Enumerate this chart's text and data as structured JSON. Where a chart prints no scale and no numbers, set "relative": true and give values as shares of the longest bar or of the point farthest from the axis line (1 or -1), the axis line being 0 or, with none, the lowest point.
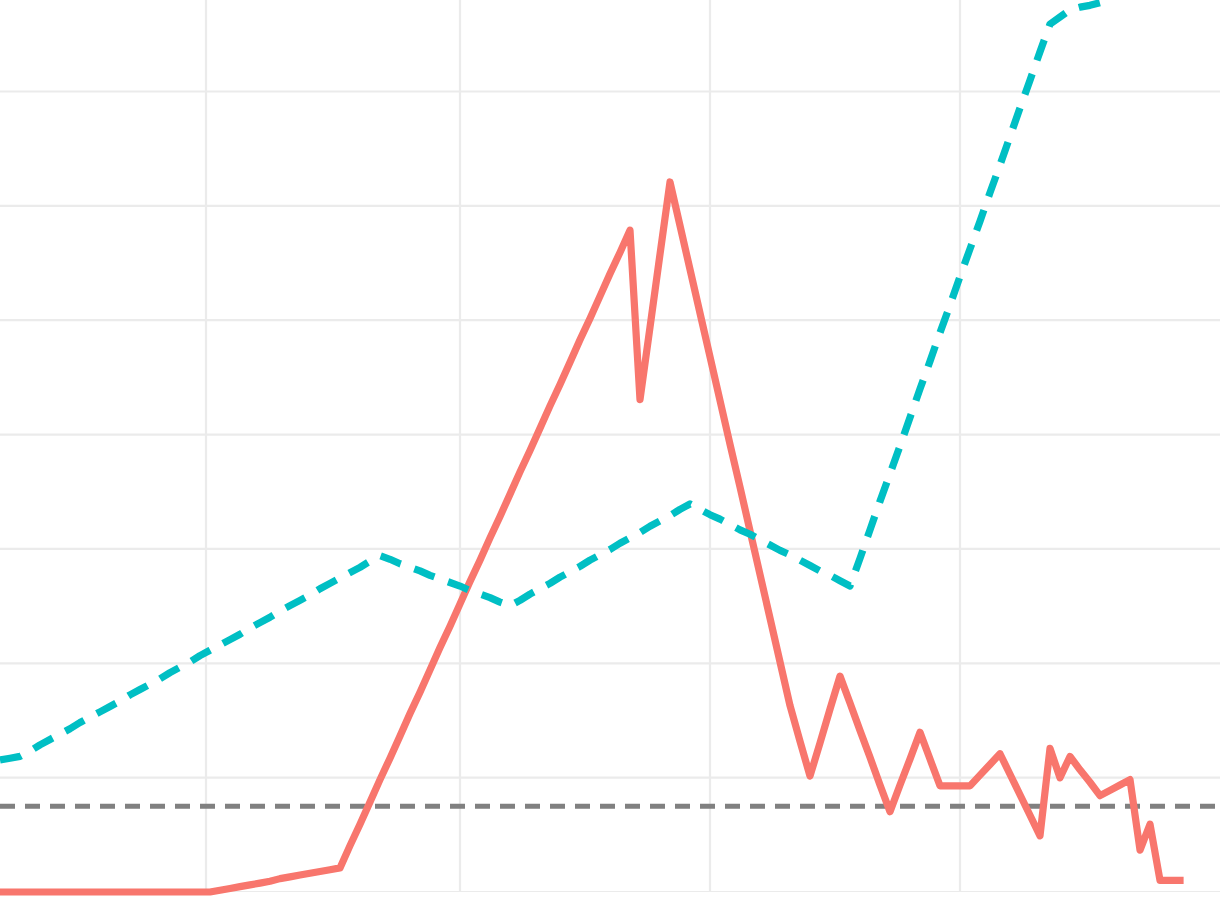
{
  "chart_data": {
    "type": "line",
    "relative": true,
    "grid": true,
    "marker": "none",
    "tick_labels": false,
    "categories": [
      null,
      null,
      null,
      null,
      null,
      null,
      null,
      null,
      null,
      null,
      null,
      null,
      null,
      null,
      null,
      null,
      null,
      null,
      null,
      null,
      null,
      null,
      null,
      null,
      null,
      null,
      null,
      null,
      null,
      null,
      null,
      null,
      null,
      null,
      null,
      null,
      null,
      null,
      null,
      null,
      null,
      null,
      null,
      null,
      null,
      null,
      null,
      null,
      null,
      null,
      null,
      null,
      null,
      null,
      null,
      null,
      null,
      null,
      null,
      null,
      null,
      null,
      null,
      null,
      null,
      null,
      null,
      null,
      null,
      null,
      null,
      null,
      null,
      null,
      null,
      null,
      null,
      null,
      null,
      null,
      null,
      null,
      null,
      null,
      null,
      null,
      null,
      null,
      null,
      null,
      null,
      null,
      null,
      null,
      null,
      null,
      null,
      null,
      null,
      null,
      null,
      null,
      null,
      null,
      null,
      null,
      null,
      null,
      null,
      null,
      null,
      null,
      null,
      null,
      null,
      null,
      null,
      null,
      null
    ],
    "series": [
      {
        "color": "#f8766d",
        "line_style": "solid",
        "values": [
          0.0,
          0.0,
          0.0,
          0.0,
          0.0,
          0.0,
          0.0,
          0.0,
          0.0,
          0.0,
          0.0,
          0.0,
          0.0,
          0.0,
          0.0,
          0.0,
          0.0,
          0.0,
          0.0,
          0.0,
          0.0,
          0.0,
          0.002,
          0.004,
          0.006,
          0.008,
          0.01,
          0.012,
          0.015,
          0.017,
          0.019,
          0.021,
          0.023,
          0.025,
          0.027,
          0.052,
          0.076,
          0.101,
          0.126,
          0.15,
          0.175,
          0.2,
          0.224,
          0.249,
          0.274,
          0.298,
          0.323,
          0.348,
          0.372,
          0.397,
          0.421,
          0.446,
          0.471,
          0.495,
          0.52,
          0.545,
          0.569,
          0.594,
          0.619,
          0.643,
          0.668,
          0.693,
          0.717,
          0.742,
          0.552,
          0.633,
          0.715,
          0.796,
          0.747,
          0.698,
          0.649,
          0.6,
          0.551,
          0.502,
          0.454,
          0.405,
          0.356,
          0.307,
          0.258,
          0.209,
          0.169,
          0.13,
          0.167,
          0.205,
          0.242,
          0.212,
          0.181,
          0.151,
          0.12,
          0.09,
          0.12,
          0.149,
          0.179,
          0.149,
          0.119,
          0.119,
          0.119,
          0.119,
          0.131,
          0.143,
          0.155,
          0.132,
          0.109,
          0.086,
          0.063,
          0.161,
          0.128,
          0.152,
          0.137,
          0.123,
          0.108,
          0.114,
          0.12,
          0.126,
          0.047,
          0.076,
          0.013,
          0.013,
          0.013
        ]
      },
      {
        "color": "#00bfc4",
        "line_style": "dashed",
        "values": [
          0.148,
          0.15,
          0.152,
          0.158,
          0.165,
          0.171,
          0.177,
          0.183,
          0.19,
          0.196,
          0.202,
          0.208,
          0.214,
          0.221,
          0.227,
          0.233,
          0.239,
          0.246,
          0.252,
          0.258,
          0.265,
          0.271,
          0.277,
          0.283,
          0.289,
          0.296,
          0.302,
          0.308,
          0.315,
          0.321,
          0.327,
          0.333,
          0.34,
          0.346,
          0.352,
          0.358,
          0.364,
          0.371,
          0.377,
          0.373,
          0.368,
          0.364,
          0.36,
          0.355,
          0.351,
          0.347,
          0.343,
          0.338,
          0.334,
          0.33,
          0.325,
          0.321,
          0.327,
          0.334,
          0.34,
          0.346,
          0.353,
          0.359,
          0.365,
          0.372,
          0.378,
          0.384,
          0.391,
          0.397,
          0.403,
          0.41,
          0.416,
          0.422,
          0.429,
          0.435,
          0.429,
          0.423,
          0.418,
          0.412,
          0.406,
          0.401,
          0.395,
          0.389,
          0.383,
          0.378,
          0.372,
          0.366,
          0.36,
          0.355,
          0.349,
          0.343,
          0.374,
          0.406,
          0.438,
          0.469,
          0.5,
          0.532,
          0.564,
          0.595,
          0.627,
          0.658,
          0.69,
          0.721,
          0.752,
          0.784,
          0.815,
          0.847,
          0.879,
          0.91,
          0.942,
          0.973,
          0.981,
          0.989,
          0.992,
          0.994,
          0.997,
          1.0,
          null,
          null,
          null,
          null,
          null,
          null,
          null
        ]
      }
    ],
    "ref_lines": [
      {
        "axis": "y",
        "value": 0.096,
        "color": "#808080",
        "line_style": "dashed"
      }
    ]
  }
}
